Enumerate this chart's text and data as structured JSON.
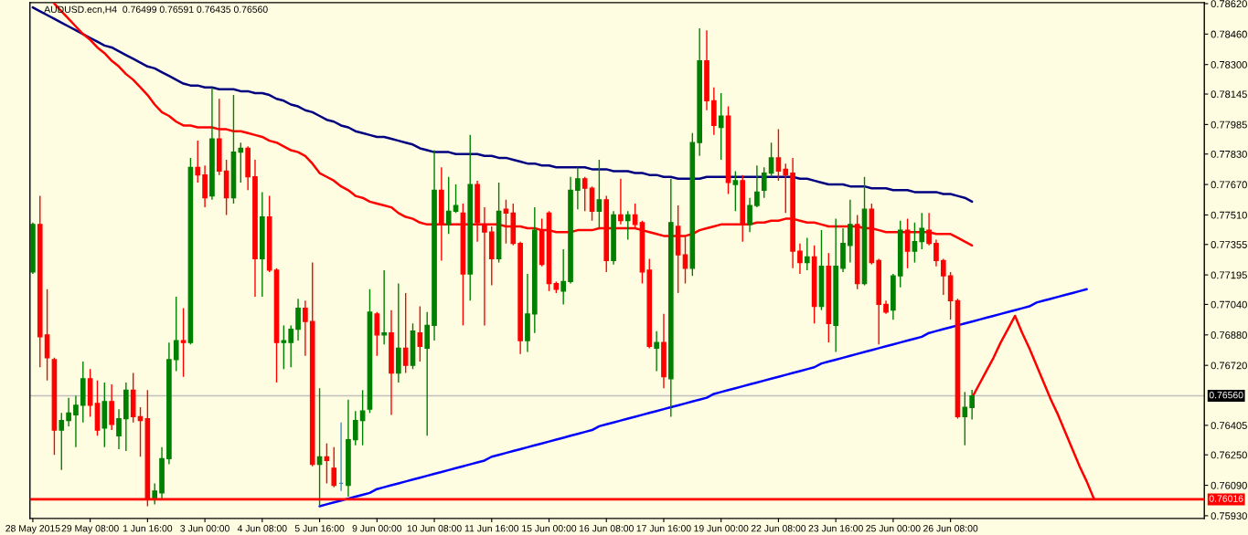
{
  "chart_data": {
    "type": "candlestick",
    "title": "AUDUSD.ecn,H4  0.76499 0.76591 0.76435 0.76560",
    "categories": [
      "28 May 2015",
      null,
      null,
      null,
      null,
      null,
      null,
      null,
      "29 May 08:00",
      null,
      null,
      null,
      null,
      null,
      null,
      null,
      "1 Jun 16:00",
      null,
      null,
      null,
      null,
      null,
      null,
      null,
      "3 Jun 00:00",
      null,
      null,
      null,
      null,
      null,
      null,
      null,
      "4 Jun 08:00",
      null,
      null,
      null,
      null,
      null,
      null,
      null,
      "5 Jun 16:00",
      null,
      null,
      null,
      null,
      null,
      null,
      null,
      "9 Jun 00:00",
      null,
      null,
      null,
      null,
      null,
      null,
      null,
      "10 Jun 08:00",
      null,
      null,
      null,
      null,
      null,
      null,
      null,
      "11 Jun 16:00",
      null,
      null,
      null,
      null,
      null,
      null,
      null,
      "15 Jun 00:00",
      null,
      null,
      null,
      null,
      null,
      null,
      null,
      "16 Jun 08:00",
      null,
      null,
      null,
      null,
      null,
      null,
      null,
      "17 Jun 16:00",
      null,
      null,
      null,
      null,
      null,
      null,
      null,
      "19 Jun 00:00",
      null,
      null,
      null,
      null,
      null,
      null,
      null,
      "22 Jun 08:00",
      null,
      null,
      null,
      null,
      null,
      null,
      null,
      "23 Jun 16:00",
      null,
      null,
      null,
      null,
      null,
      null,
      null,
      "25 Jun 00:00",
      null,
      null,
      null,
      null,
      null,
      null,
      null,
      "26 Jun 08:00",
      null,
      null,
      null,
      null,
      null,
      null,
      null,
      null,
      null,
      null,
      null,
      null,
      null,
      null,
      null,
      null,
      null,
      null,
      null,
      null,
      null,
      null,
      null,
      null,
      null,
      null,
      null,
      null,
      null,
      null,
      null,
      null,
      null,
      null,
      null
    ],
    "ohlc": [
      [
        0.7721,
        0.7747,
        0.772,
        0.7746
      ],
      [
        0.7746,
        0.7761,
        0.7671,
        0.7687
      ],
      [
        0.7688,
        0.7712,
        0.7664,
        0.7676
      ],
      [
        0.7675,
        0.7676,
        0.7625,
        0.7638
      ],
      [
        0.7638,
        0.7647,
        0.7617,
        0.7643
      ],
      [
        0.7643,
        0.7655,
        0.764,
        0.7647
      ],
      [
        0.7646,
        0.7656,
        0.7629,
        0.7651
      ],
      [
        0.7651,
        0.7674,
        0.7642,
        0.7665
      ],
      [
        0.7665,
        0.767,
        0.7645,
        0.7651
      ],
      [
        0.7652,
        0.7664,
        0.7635,
        0.7638
      ],
      [
        0.7639,
        0.7663,
        0.7629,
        0.7653
      ],
      [
        0.7653,
        0.7662,
        0.7638,
        0.7641
      ],
      [
        0.7635,
        0.7649,
        0.7628,
        0.7644
      ],
      [
        0.7644,
        0.7663,
        0.7627,
        0.7659
      ],
      [
        0.7659,
        0.7668,
        0.7642,
        0.7645
      ],
      [
        0.7645,
        0.765,
        0.7624,
        0.7643
      ],
      [
        0.7644,
        0.7659,
        0.7598,
        0.7602
      ],
      [
        0.7602,
        0.761,
        0.7599,
        0.7606
      ],
      [
        0.7605,
        0.7629,
        0.7602,
        0.7623
      ],
      [
        0.7623,
        0.7684,
        0.762,
        0.7675
      ],
      [
        0.7675,
        0.7708,
        0.7669,
        0.7685
      ],
      [
        0.7685,
        0.7702,
        0.7666,
        0.7684
      ],
      [
        0.7684,
        0.7781,
        0.7683,
        0.7776
      ],
      [
        0.7776,
        0.779,
        0.7768,
        0.7772
      ],
      [
        0.7772,
        0.7777,
        0.7755,
        0.776
      ],
      [
        0.7761,
        0.7818,
        0.7759,
        0.7791
      ],
      [
        0.7791,
        0.7812,
        0.7772,
        0.7774
      ],
      [
        0.7774,
        0.778,
        0.7751,
        0.776
      ],
      [
        0.776,
        0.7814,
        0.7757,
        0.7784
      ],
      [
        0.7784,
        0.7789,
        0.7768,
        0.7786
      ],
      [
        0.7786,
        0.7787,
        0.7764,
        0.7771
      ],
      [
        0.7771,
        0.778,
        0.7708,
        0.7728
      ],
      [
        0.7728,
        0.7763,
        0.7708,
        0.775
      ],
      [
        0.775,
        0.7761,
        0.7721,
        0.7722
      ],
      [
        0.7722,
        0.7723,
        0.7663,
        0.7684
      ],
      [
        0.7684,
        0.7693,
        0.767,
        0.7685
      ],
      [
        0.7684,
        0.7693,
        0.7671,
        0.7691
      ],
      [
        0.7691,
        0.7707,
        0.7685,
        0.7702
      ],
      [
        0.7702,
        0.7706,
        0.7677,
        0.7695
      ],
      [
        0.7695,
        0.7726,
        0.7619,
        0.762
      ],
      [
        0.762,
        0.766,
        0.7598,
        0.7624
      ],
      [
        0.7624,
        0.7631,
        0.761,
        0.7622
      ],
      [
        0.7618,
        0.7629,
        0.7608,
        0.7609
      ],
      [
        0.761,
        0.7642,
        0.7606,
        0.761
      ],
      [
        0.7609,
        0.7654,
        0.7603,
        0.7633
      ],
      [
        0.7633,
        0.7648,
        0.763,
        0.7643
      ],
      [
        0.7643,
        0.7659,
        0.763,
        0.7648
      ],
      [
        0.7649,
        0.7712,
        0.7647,
        0.77
      ],
      [
        0.7699,
        0.77,
        0.7677,
        0.7688
      ],
      [
        0.7688,
        0.7722,
        0.7683,
        0.7689
      ],
      [
        0.7689,
        0.7701,
        0.7646,
        0.7668
      ],
      [
        0.7668,
        0.7715,
        0.7663,
        0.7681
      ],
      [
        0.7681,
        0.771,
        0.7668,
        0.7672
      ],
      [
        0.7672,
        0.7694,
        0.767,
        0.769
      ],
      [
        0.7689,
        0.7703,
        0.7674,
        0.7682
      ],
      [
        0.7681,
        0.77,
        0.7635,
        0.7693
      ],
      [
        0.7693,
        0.7785,
        0.7685,
        0.7764
      ],
      [
        0.7764,
        0.7776,
        0.7727,
        0.7746
      ],
      [
        0.7746,
        0.7771,
        0.7741,
        0.7753
      ],
      [
        0.7753,
        0.7767,
        0.7752,
        0.7756
      ],
      [
        0.7752,
        0.7757,
        0.7693,
        0.772
      ],
      [
        0.772,
        0.7793,
        0.7706,
        0.7767
      ],
      [
        0.7767,
        0.7769,
        0.7737,
        0.7747
      ],
      [
        0.7746,
        0.7755,
        0.7693,
        0.7742
      ],
      [
        0.7742,
        0.7745,
        0.7714,
        0.7728
      ],
      [
        0.7728,
        0.7768,
        0.7726,
        0.7753
      ],
      [
        0.7754,
        0.7759,
        0.7736,
        0.7752
      ],
      [
        0.7752,
        0.7757,
        0.7735,
        0.7736
      ],
      [
        0.7736,
        0.7737,
        0.7678,
        0.7685
      ],
      [
        0.7685,
        0.772,
        0.7679,
        0.7699
      ],
      [
        0.7699,
        0.7755,
        0.7689,
        0.7743
      ],
      [
        0.7743,
        0.7749,
        0.7724,
        0.7725
      ],
      [
        0.7752,
        0.7753,
        0.7711,
        0.7715
      ],
      [
        0.7715,
        0.7716,
        0.771,
        0.7712
      ],
      [
        0.7711,
        0.7733,
        0.7704,
        0.7716
      ],
      [
        0.7716,
        0.7771,
        0.7715,
        0.7764
      ],
      [
        0.7764,
        0.7776,
        0.7754,
        0.777
      ],
      [
        0.777,
        0.7771,
        0.7753,
        0.7765
      ],
      [
        0.7765,
        0.7766,
        0.7748,
        0.7753
      ],
      [
        0.7753,
        0.778,
        0.7744,
        0.7759
      ],
      [
        0.7759,
        0.7761,
        0.7721,
        0.7727
      ],
      [
        0.7727,
        0.7753,
        0.7725,
        0.7751
      ],
      [
        0.7751,
        0.777,
        0.7746,
        0.7748
      ],
      [
        0.7748,
        0.7753,
        0.7738,
        0.7751
      ],
      [
        0.7751,
        0.7757,
        0.7744,
        0.7746
      ],
      [
        0.7747,
        0.7748,
        0.7715,
        0.7721
      ],
      [
        0.7722,
        0.7728,
        0.7681,
        0.7682
      ],
      [
        0.7681,
        0.769,
        0.7669,
        0.7684
      ],
      [
        0.7684,
        0.7699,
        0.766,
        0.7666
      ],
      [
        0.7665,
        0.777,
        0.7645,
        0.7747
      ],
      [
        0.7745,
        0.7756,
        0.771,
        0.773
      ],
      [
        0.773,
        0.774,
        0.7715,
        0.7723
      ],
      [
        0.7723,
        0.7794,
        0.7719,
        0.7789
      ],
      [
        0.7789,
        0.7849,
        0.7782,
        0.7832
      ],
      [
        0.7832,
        0.7848,
        0.7806,
        0.7811
      ],
      [
        0.7811,
        0.7818,
        0.7793,
        0.7798
      ],
      [
        0.7797,
        0.7815,
        0.778,
        0.7803
      ],
      [
        0.7803,
        0.7808,
        0.7762,
        0.7768
      ],
      [
        0.7767,
        0.7774,
        0.7753,
        0.7769
      ],
      [
        0.7769,
        0.7772,
        0.7737,
        0.7746
      ],
      [
        0.7746,
        0.776,
        0.7742,
        0.7756
      ],
      [
        0.7756,
        0.7777,
        0.7755,
        0.7763
      ],
      [
        0.7764,
        0.7776,
        0.776,
        0.7773
      ],
      [
        0.7773,
        0.7789,
        0.7771,
        0.7781
      ],
      [
        0.7781,
        0.7796,
        0.7769,
        0.7774
      ],
      [
        0.7775,
        0.7778,
        0.7752,
        0.7772
      ],
      [
        0.7773,
        0.7781,
        0.7723,
        0.7732
      ],
      [
        0.7732,
        0.7736,
        0.772,
        0.7726
      ],
      [
        0.7726,
        0.7739,
        0.7722,
        0.7729
      ],
      [
        0.7729,
        0.7735,
        0.7694,
        0.7703
      ],
      [
        0.7703,
        0.7743,
        0.7701,
        0.7724
      ],
      [
        0.7724,
        0.7731,
        0.7684,
        0.7694
      ],
      [
        0.7693,
        0.7749,
        0.7679,
        0.7724
      ],
      [
        0.7723,
        0.7744,
        0.7721,
        0.7736
      ],
      [
        0.7735,
        0.7759,
        0.7726,
        0.7746
      ],
      [
        0.7746,
        0.7751,
        0.7712,
        0.7715
      ],
      [
        0.7715,
        0.7771,
        0.7714,
        0.7754
      ],
      [
        0.7754,
        0.7757,
        0.7725,
        0.7726
      ],
      [
        0.7727,
        0.7728,
        0.7683,
        0.7704
      ],
      [
        0.7704,
        0.7706,
        0.7699,
        0.77
      ],
      [
        0.7701,
        0.772,
        0.7696,
        0.7719
      ],
      [
        0.7719,
        0.7748,
        0.7713,
        0.7743
      ],
      [
        0.7743,
        0.7749,
        0.7723,
        0.7732
      ],
      [
        0.7732,
        0.7747,
        0.7726,
        0.7737
      ],
      [
        0.7737,
        0.7752,
        0.7733,
        0.7744
      ],
      [
        0.7743,
        0.7752,
        0.7735,
        0.7736
      ],
      [
        0.7736,
        0.7738,
        0.7724,
        0.7727
      ],
      [
        0.7727,
        0.7728,
        0.7709,
        0.7719
      ],
      [
        0.7719,
        0.7721,
        0.7696,
        0.7706
      ],
      [
        0.7706,
        0.7707,
        0.7644,
        0.7645
      ],
      [
        0.7645,
        0.7658,
        0.763,
        0.765
      ],
      [
        0.76499,
        0.76591,
        0.76435,
        0.7656
      ],
      null,
      null,
      null,
      null,
      null,
      null,
      null,
      null,
      null,
      null,
      null,
      null,
      null,
      null,
      null,
      null,
      null,
      null,
      null,
      null,
      null,
      null,
      null,
      null,
      null,
      null,
      null,
      null,
      null,
      null,
      null,
      null
    ],
    "colors": [
      "#008000",
      "#ff0000",
      "#ff0000",
      "#ff0000",
      "#008000",
      "#008000",
      "#008000",
      "#008000",
      "#ff0000",
      "#ff0000",
      "#008000",
      "#ff0000",
      "#008000",
      "#008000",
      "#ff0000",
      "#ff0000",
      "#ff0000",
      "#008000",
      "#008000",
      "#008000",
      "#008000",
      "#ff0000",
      "#008000",
      "#ff0000",
      "#ff0000",
      "#008000",
      "#ff0000",
      "#ff0000",
      "#008000",
      "#008000",
      "#ff0000",
      "#ff0000",
      "#008000",
      "#ff0000",
      "#ff0000",
      "#008000",
      "#008000",
      "#008000",
      "#ff0000",
      "#ff0000",
      "#008000",
      "#ff0000",
      "#ff0000",
      "#3c8cc8",
      "#008000",
      "#008000",
      "#008000",
      "#008000",
      "#ff0000",
      "#008000",
      "#ff0000",
      "#008000",
      "#ff0000",
      "#008000",
      "#ff0000",
      "#008000",
      "#008000",
      "#ff0000",
      "#008000",
      "#008000",
      "#ff0000",
      "#008000",
      "#ff0000",
      "#ff0000",
      "#ff0000",
      "#008000",
      "#ff0000",
      "#ff0000",
      "#ff0000",
      "#008000",
      "#008000",
      "#ff0000",
      "#ff0000",
      "#ff0000",
      "#008000",
      "#008000",
      "#008000",
      "#ff0000",
      "#ff0000",
      "#008000",
      "#ff0000",
      "#008000",
      "#ff0000",
      "#008000",
      "#ff0000",
      "#ff0000",
      "#ff0000",
      "#008000",
      "#ff0000",
      "#008000",
      "#ff0000",
      "#ff0000",
      "#008000",
      "#008000",
      "#ff0000",
      "#ff0000",
      "#008000",
      "#ff0000",
      "#008000",
      "#ff0000",
      "#008000",
      "#008000",
      "#008000",
      "#008000",
      "#ff0000",
      "#ff0000",
      "#ff0000",
      "#ff0000",
      "#008000",
      "#ff0000",
      "#008000",
      "#ff0000",
      "#008000",
      "#008000",
      "#008000",
      "#ff0000",
      "#008000",
      "#ff0000",
      "#ff0000",
      "#ff0000",
      "#008000",
      "#008000",
      "#ff0000",
      "#008000",
      "#008000",
      "#ff0000",
      "#ff0000",
      "#ff0000",
      "#ff0000",
      "#ff0000",
      "#008000",
      "#008000",
      null,
      null,
      null,
      null,
      null,
      null,
      null,
      null,
      null,
      null,
      null,
      null,
      null,
      null,
      null,
      null,
      null,
      null,
      null,
      null,
      null,
      null,
      null,
      null,
      null,
      null,
      null,
      null,
      null,
      null,
      null,
      null
    ],
    "series": [
      {
        "type": "line",
        "color": "#000080",
        "values": [
          0.786,
          0.7858,
          0.7856,
          0.7854,
          0.7852,
          0.785,
          0.7848,
          0.7846,
          0.7844,
          0.7842,
          0.784,
          0.7839,
          0.7837,
          0.7835,
          0.7833,
          0.7831,
          0.7829,
          0.7828,
          0.7826,
          0.7824,
          0.7822,
          0.782,
          0.7819,
          0.7819,
          0.7818,
          0.7818,
          0.7817,
          0.7817,
          0.7817,
          0.7816,
          0.7816,
          0.7815,
          0.7815,
          0.7814,
          0.7812,
          0.7811,
          0.7809,
          0.7808,
          0.7806,
          0.7805,
          0.7803,
          0.7801,
          0.78,
          0.7798,
          0.7797,
          0.7795,
          0.7794,
          0.7793,
          0.7792,
          0.7792,
          0.7791,
          0.779,
          0.7789,
          0.7788,
          0.7786,
          0.7785,
          0.7784,
          0.7784,
          0.7784,
          0.7783,
          0.7783,
          0.7783,
          0.7783,
          0.7782,
          0.7782,
          0.7781,
          0.7781,
          0.778,
          0.7779,
          0.7778,
          0.7778,
          0.7777,
          0.7777,
          0.7776,
          0.7776,
          0.7776,
          0.7776,
          0.7776,
          0.7775,
          0.7775,
          0.7775,
          0.7774,
          0.7774,
          0.7774,
          0.7773,
          0.7773,
          0.7772,
          0.7772,
          0.7771,
          0.7771,
          0.777,
          0.777,
          0.777,
          0.777,
          0.7771,
          0.7771,
          0.7771,
          0.7771,
          0.7771,
          0.7771,
          0.7771,
          0.7771,
          0.7771,
          0.7771,
          0.7771,
          0.7771,
          0.7771,
          0.777,
          0.777,
          0.7769,
          0.7768,
          0.7767,
          0.7767,
          0.7767,
          0.7766,
          0.7766,
          0.7766,
          0.7765,
          0.7765,
          0.7765,
          0.7764,
          0.7764,
          0.7764,
          0.7763,
          0.7763,
          0.7763,
          0.7763,
          0.7762,
          0.7762,
          0.7761,
          0.776,
          0.7758,
          null,
          null,
          null,
          null,
          null,
          null,
          null,
          null,
          null,
          null,
          null,
          null,
          null,
          null,
          null,
          null,
          null,
          null,
          null,
          null,
          null,
          null,
          null,
          null,
          null,
          null,
          null,
          null,
          null,
          null,
          null,
          null
        ]
      },
      {
        "type": "line",
        "color": "#ff0000",
        "values": [
          null,
          null,
          null,
          0.7862,
          0.7858,
          0.7854,
          0.785,
          0.7846,
          0.7843,
          0.7839,
          0.7836,
          0.7832,
          0.7829,
          0.7825,
          0.7822,
          0.7818,
          0.7814,
          0.7809,
          0.7805,
          0.7803,
          0.78,
          0.7798,
          0.7798,
          0.7797,
          0.7797,
          0.7797,
          0.7796,
          0.7796,
          0.7795,
          0.7795,
          0.7794,
          0.7793,
          0.7792,
          0.779,
          0.7789,
          0.7787,
          0.7785,
          0.7784,
          0.7782,
          0.7778,
          0.7773,
          0.7771,
          0.7769,
          0.7766,
          0.7764,
          0.7761,
          0.776,
          0.7758,
          0.7757,
          0.7756,
          0.7755,
          0.7752,
          0.775,
          0.7749,
          0.7747,
          0.7746,
          0.7746,
          0.7746,
          0.7746,
          0.7746,
          0.7746,
          0.7746,
          0.7746,
          0.7746,
          0.7746,
          0.7746,
          0.7745,
          0.7745,
          0.7745,
          0.7744,
          0.7744,
          0.7743,
          0.7743,
          0.7742,
          0.7742,
          0.7742,
          0.7743,
          0.7743,
          0.7743,
          0.7744,
          0.7744,
          0.7744,
          0.7744,
          0.7744,
          0.7744,
          0.7743,
          0.7742,
          0.7741,
          0.774,
          0.774,
          0.774,
          0.774,
          0.7741,
          0.7743,
          0.7744,
          0.7745,
          0.7746,
          0.7746,
          0.7746,
          0.7746,
          0.7746,
          0.7747,
          0.7747,
          0.7748,
          0.7748,
          0.7749,
          0.7749,
          0.7748,
          0.7747,
          0.7747,
          0.7746,
          0.7745,
          0.7745,
          0.7745,
          0.7745,
          0.7745,
          0.7744,
          0.7744,
          0.7743,
          0.7742,
          0.7742,
          0.7742,
          0.7742,
          0.7742,
          0.7742,
          0.7742,
          0.7741,
          0.7741,
          0.7741,
          0.7739,
          0.7737,
          0.7735,
          null,
          null,
          null,
          null,
          null,
          null,
          null,
          null,
          null,
          null,
          null,
          null,
          null,
          null,
          null,
          null,
          null,
          null,
          null,
          null,
          null,
          null,
          null,
          null,
          null,
          null,
          null,
          null,
          null,
          null,
          null,
          null
        ]
      },
      {
        "type": "line",
        "color": "#0000ff",
        "values": [
          null,
          null,
          null,
          null,
          null,
          null,
          null,
          null,
          null,
          null,
          null,
          null,
          null,
          null,
          null,
          null,
          null,
          null,
          null,
          null,
          null,
          null,
          null,
          null,
          null,
          null,
          null,
          null,
          null,
          null,
          null,
          null,
          null,
          null,
          null,
          null,
          null,
          null,
          null,
          null,
          0.7598,
          0.7599,
          0.76,
          0.7601,
          0.7602,
          0.7603,
          0.7604,
          0.7605,
          0.7607,
          0.7608,
          0.7609,
          0.761,
          0.7611,
          0.7612,
          0.7613,
          0.7614,
          0.7615,
          0.7616,
          0.7617,
          0.7618,
          0.7619,
          0.762,
          0.7621,
          0.7622,
          0.7624,
          0.7625,
          0.7626,
          0.7627,
          0.7628,
          0.7629,
          0.763,
          0.7631,
          0.7632,
          0.7633,
          0.7634,
          0.7635,
          0.7636,
          0.7637,
          0.7638,
          0.764,
          0.7641,
          0.7642,
          0.7643,
          0.7644,
          0.7645,
          0.7646,
          0.7647,
          0.7648,
          0.7649,
          0.765,
          0.7651,
          0.7652,
          0.7653,
          0.7654,
          0.7655,
          0.7657,
          0.7658,
          0.7659,
          0.766,
          0.7661,
          0.7662,
          0.7663,
          0.7664,
          0.7665,
          0.7666,
          0.7667,
          0.7668,
          0.7669,
          0.767,
          0.7671,
          0.7673,
          0.7674,
          0.7675,
          0.7676,
          0.7677,
          0.7678,
          0.7679,
          0.768,
          0.7681,
          0.7682,
          0.7683,
          0.7684,
          0.7685,
          0.7686,
          0.7687,
          0.7689,
          0.769,
          0.7691,
          0.7692,
          0.7693,
          0.7694,
          0.7695,
          0.7696,
          0.7697,
          0.7698,
          0.7699,
          0.77,
          0.7701,
          0.7702,
          0.7703,
          0.7705,
          0.7706,
          0.7707,
          0.7708,
          0.7709,
          0.771,
          0.7711,
          0.7712,
          null,
          null,
          null,
          null,
          null,
          null,
          null,
          null,
          null,
          null,
          null,
          null,
          null,
          null,
          null,
          null
        ]
      },
      {
        "type": "line",
        "color": "#ff0000",
        "values": [
          null,
          null,
          null,
          null,
          null,
          null,
          null,
          null,
          null,
          null,
          null,
          null,
          null,
          null,
          null,
          null,
          null,
          null,
          null,
          null,
          null,
          null,
          null,
          null,
          null,
          null,
          null,
          null,
          null,
          null,
          null,
          null,
          null,
          null,
          null,
          null,
          null,
          null,
          null,
          null,
          null,
          null,
          null,
          null,
          null,
          null,
          null,
          null,
          null,
          null,
          null,
          null,
          null,
          null,
          null,
          null,
          null,
          null,
          null,
          null,
          null,
          null,
          null,
          null,
          null,
          null,
          null,
          null,
          null,
          null,
          null,
          null,
          null,
          null,
          null,
          null,
          null,
          null,
          null,
          null,
          null,
          null,
          null,
          null,
          null,
          null,
          null,
          null,
          null,
          null,
          null,
          null,
          null,
          null,
          null,
          null,
          null,
          null,
          null,
          null,
          null,
          null,
          null,
          null,
          null,
          null,
          null,
          null,
          null,
          null,
          null,
          null,
          null,
          null,
          null,
          null,
          null,
          null,
          null,
          null,
          null,
          null,
          null,
          null,
          null,
          null,
          null,
          null,
          null,
          null,
          null,
          0.7655,
          0.7662,
          0.7669,
          0.7676,
          0.7684,
          0.7691,
          0.7698,
          0.7689,
          0.7681,
          0.7672,
          0.7663,
          0.7654,
          0.7646,
          0.7637,
          0.7628,
          0.7619,
          0.7611,
          0.7602,
          null,
          null,
          null,
          null,
          null,
          null,
          null,
          null,
          null,
          null,
          null,
          null,
          null,
          null,
          null
        ]
      }
    ],
    "ylim": [
      0.75916,
      0.78625
    ],
    "yticks": [
      {
        "value": 0.7862,
        "label": "0.78620"
      },
      {
        "value": 0.7846,
        "label": "0.78460"
      },
      {
        "value": 0.783,
        "label": "0.78300"
      },
      {
        "value": 0.78145,
        "label": "0.78145"
      },
      {
        "value": 0.77985,
        "label": "0.77985"
      },
      {
        "value": 0.7783,
        "label": "0.77830"
      },
      {
        "value": 0.7767,
        "label": "0.77670"
      },
      {
        "value": 0.7751,
        "label": "0.77510"
      },
      {
        "value": 0.77355,
        "label": "0.77355"
      },
      {
        "value": 0.77195,
        "label": "0.77195"
      },
      {
        "value": 0.7704,
        "label": "0.77040"
      },
      {
        "value": 0.7688,
        "label": "0.76880"
      },
      {
        "value": 0.7672,
        "label": "0.76720"
      },
      {
        "value": 0.76405,
        "label": "0.76405"
      },
      {
        "value": 0.7625,
        "label": "0.76250"
      },
      {
        "value": 0.7609,
        "label": "0.76090"
      },
      {
        "value": 0.7593,
        "label": "0.75930"
      }
    ],
    "ref_lines": [
      {
        "axis": "y",
        "value": 0.7656,
        "label": "0.76560",
        "color": "#c0c0c0"
      },
      {
        "axis": "y",
        "value": 0.76016,
        "label": "0.76016",
        "color": "#ff0000"
      }
    ],
    "grid": false,
    "legend": false
  }
}
